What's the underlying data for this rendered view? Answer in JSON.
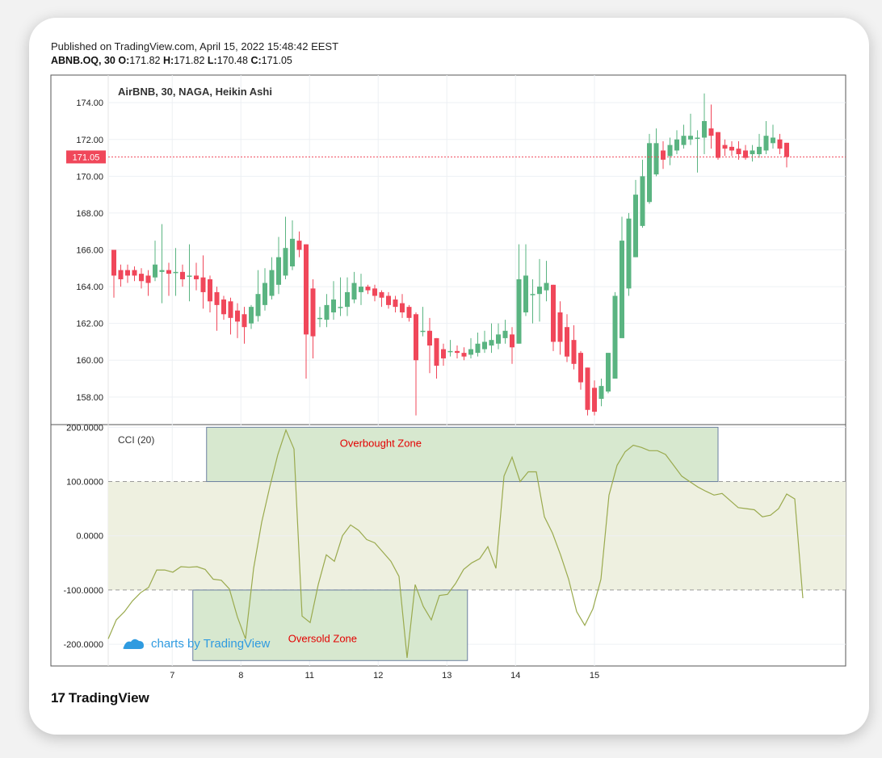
{
  "header": {
    "published": "Published on TradingView.com, April 15, 2022 15:48:42 EEST",
    "symbol": "ABNB.OQ, 30",
    "o_label": "O:",
    "o_value": "171.82",
    "h_label": "H:",
    "h_value": "171.82",
    "l_label": "L:",
    "l_value": "170.48",
    "c_label": "C:",
    "c_value": "171.05"
  },
  "footer": {
    "brand": "TradingView",
    "brand_mark": "17"
  },
  "colors": {
    "up": "#5ab481",
    "down": "#f0475a",
    "cci": "#9aaa4e",
    "band": "#eef0e0",
    "zone": "#d7e8cf",
    "zone_border": "#6b7fa0",
    "zone_text": "#e30000",
    "watermark": "#2f9be0",
    "price_tag": "#f0475a"
  },
  "chart_data": [
    {
      "type": "candlestick",
      "title": "AirBNB, 30, NAGA, Heikin Ashi",
      "ylim": [
        156.5,
        175.5
      ],
      "yticks": [
        "174.00",
        "172.00",
        "170.00",
        "168.00",
        "166.00",
        "164.00",
        "162.00",
        "160.00",
        "158.00"
      ],
      "ytick_values": [
        174,
        172,
        170,
        168,
        166,
        164,
        162,
        160,
        158
      ],
      "xticks": [
        "7",
        "8",
        "11",
        "12",
        "13",
        "14",
        "15"
      ],
      "x_label_slots": [
        8.5,
        18.5,
        28.5,
        38.5,
        48.5,
        58.5,
        70.0
      ],
      "last_price": 171.05,
      "last_price_label": "171.05",
      "candles": [
        {
          "o": 166.0,
          "c": 164.6,
          "h": 166.0,
          "l": 163.4
        },
        {
          "o": 164.9,
          "c": 164.4,
          "h": 165.2,
          "l": 164.0
        },
        {
          "o": 164.9,
          "c": 164.6,
          "h": 165.2,
          "l": 164.2
        },
        {
          "o": 164.9,
          "c": 164.6,
          "h": 165.1,
          "l": 164.3
        },
        {
          "o": 164.7,
          "c": 164.3,
          "h": 165.0,
          "l": 163.9
        },
        {
          "o": 164.6,
          "c": 164.2,
          "h": 164.9,
          "l": 163.5
        },
        {
          "o": 164.5,
          "c": 165.2,
          "h": 166.5,
          "l": 164.3
        },
        {
          "o": 164.8,
          "c": 164.9,
          "h": 167.4,
          "l": 163.1
        },
        {
          "o": 164.9,
          "c": 164.7,
          "h": 165.3,
          "l": 163.5
        },
        {
          "o": 164.8,
          "c": 164.8,
          "h": 166.1,
          "l": 163.5
        },
        {
          "o": 164.8,
          "c": 164.4,
          "h": 165.2,
          "l": 164.0
        },
        {
          "o": 164.6,
          "c": 164.6,
          "h": 166.3,
          "l": 163.2
        },
        {
          "o": 164.6,
          "c": 164.4,
          "h": 165.3,
          "l": 163.8
        },
        {
          "o": 164.5,
          "c": 163.7,
          "h": 165.7,
          "l": 162.8
        },
        {
          "o": 164.4,
          "c": 163.2,
          "h": 164.6,
          "l": 162.6
        },
        {
          "o": 163.7,
          "c": 163.0,
          "h": 164.0,
          "l": 161.6
        },
        {
          "o": 163.3,
          "c": 162.5,
          "h": 163.5,
          "l": 162.2
        },
        {
          "o": 163.2,
          "c": 162.3,
          "h": 163.4,
          "l": 161.4
        },
        {
          "o": 162.7,
          "c": 162.1,
          "h": 163.1,
          "l": 161.2
        },
        {
          "o": 162.5,
          "c": 161.8,
          "h": 162.9,
          "l": 160.9
        },
        {
          "o": 162.0,
          "c": 162.9,
          "h": 163.0,
          "l": 161.7
        },
        {
          "o": 162.4,
          "c": 163.6,
          "h": 164.9,
          "l": 162.1
        },
        {
          "o": 163.0,
          "c": 164.2,
          "h": 165.0,
          "l": 162.7
        },
        {
          "o": 163.5,
          "c": 164.9,
          "h": 165.6,
          "l": 163.3
        },
        {
          "o": 164.1,
          "c": 165.6,
          "h": 166.7,
          "l": 163.6
        },
        {
          "o": 164.6,
          "c": 166.1,
          "h": 167.8,
          "l": 164.4
        },
        {
          "o": 165.1,
          "c": 166.6,
          "h": 167.6,
          "l": 164.9
        },
        {
          "o": 166.5,
          "c": 166.0,
          "h": 167.0,
          "l": 165.6
        },
        {
          "o": 166.3,
          "c": 161.4,
          "h": 166.3,
          "l": 159.0
        },
        {
          "o": 163.9,
          "c": 161.3,
          "h": 164.4,
          "l": 160.1
        },
        {
          "o": 162.3,
          "c": 162.3,
          "h": 162.9,
          "l": 161.8
        },
        {
          "o": 162.2,
          "c": 163.0,
          "h": 163.6,
          "l": 161.8
        },
        {
          "o": 162.6,
          "c": 163.3,
          "h": 164.3,
          "l": 162.2
        },
        {
          "o": 162.9,
          "c": 162.9,
          "h": 164.5,
          "l": 162.4
        },
        {
          "o": 162.9,
          "c": 163.7,
          "h": 164.5,
          "l": 162.4
        },
        {
          "o": 163.3,
          "c": 164.2,
          "h": 164.8,
          "l": 163.1
        },
        {
          "o": 163.7,
          "c": 164.0,
          "h": 164.7,
          "l": 163.0
        },
        {
          "o": 164.0,
          "c": 163.8,
          "h": 164.1,
          "l": 163.6
        },
        {
          "o": 163.9,
          "c": 163.5,
          "h": 164.1,
          "l": 163.2
        },
        {
          "o": 163.7,
          "c": 163.4,
          "h": 163.8,
          "l": 162.9
        },
        {
          "o": 163.5,
          "c": 163.0,
          "h": 163.7,
          "l": 162.8
        },
        {
          "o": 163.3,
          "c": 162.9,
          "h": 163.5,
          "l": 162.6
        },
        {
          "o": 163.1,
          "c": 162.6,
          "h": 163.6,
          "l": 162.3
        },
        {
          "o": 162.9,
          "c": 162.3,
          "h": 163.0,
          "l": 162.1
        },
        {
          "o": 162.5,
          "c": 160.0,
          "h": 162.6,
          "l": 157.0
        },
        {
          "o": 161.6,
          "c": 161.6,
          "h": 162.9,
          "l": 161.3
        },
        {
          "o": 161.6,
          "c": 160.8,
          "h": 162.3,
          "l": 159.3
        },
        {
          "o": 161.2,
          "c": 159.7,
          "h": 161.2,
          "l": 159.0
        },
        {
          "o": 160.6,
          "c": 160.1,
          "h": 160.9,
          "l": 159.7
        },
        {
          "o": 160.5,
          "c": 160.5,
          "h": 161.1,
          "l": 160.2
        },
        {
          "o": 160.5,
          "c": 160.4,
          "h": 160.8,
          "l": 160.1
        },
        {
          "o": 160.4,
          "c": 160.2,
          "h": 160.7,
          "l": 160.0
        },
        {
          "o": 160.3,
          "c": 160.6,
          "h": 161.2,
          "l": 160.1
        },
        {
          "o": 160.4,
          "c": 160.9,
          "h": 161.5,
          "l": 160.2
        },
        {
          "o": 160.6,
          "c": 161.0,
          "h": 161.6,
          "l": 160.4
        },
        {
          "o": 160.8,
          "c": 161.1,
          "h": 162.0,
          "l": 160.4
        },
        {
          "o": 160.9,
          "c": 161.4,
          "h": 162.0,
          "l": 160.6
        },
        {
          "o": 161.2,
          "c": 161.6,
          "h": 162.2,
          "l": 160.9
        },
        {
          "o": 161.4,
          "c": 160.7,
          "h": 161.8,
          "l": 159.8
        },
        {
          "o": 160.9,
          "c": 164.4,
          "h": 166.3,
          "l": 160.9
        },
        {
          "o": 162.6,
          "c": 164.6,
          "h": 166.3,
          "l": 162.4
        },
        {
          "o": 163.6,
          "c": 163.6,
          "h": 164.4,
          "l": 162.0
        },
        {
          "o": 163.6,
          "c": 164.0,
          "h": 165.5,
          "l": 162.1
        },
        {
          "o": 163.8,
          "c": 164.2,
          "h": 165.4,
          "l": 163.2
        },
        {
          "o": 164.1,
          "c": 161.0,
          "h": 164.1,
          "l": 160.5
        },
        {
          "o": 162.6,
          "c": 161.0,
          "h": 163.2,
          "l": 160.3
        },
        {
          "o": 161.8,
          "c": 160.2,
          "h": 162.5,
          "l": 159.9
        },
        {
          "o": 161.1,
          "c": 159.8,
          "h": 161.9,
          "l": 159.5
        },
        {
          "o": 160.4,
          "c": 158.8,
          "h": 160.5,
          "l": 158.4
        },
        {
          "o": 159.6,
          "c": 157.3,
          "h": 159.6,
          "l": 157.0
        },
        {
          "o": 158.5,
          "c": 157.2,
          "h": 158.9,
          "l": 157.0
        },
        {
          "o": 157.9,
          "c": 158.6,
          "h": 159.0,
          "l": 157.5
        },
        {
          "o": 158.3,
          "c": 160.4,
          "h": 160.4,
          "l": 158.2
        },
        {
          "o": 159.0,
          "c": 163.5,
          "h": 163.7,
          "l": 159.0
        },
        {
          "o": 161.2,
          "c": 166.5,
          "h": 167.8,
          "l": 161.2
        },
        {
          "o": 163.9,
          "c": 167.7,
          "h": 168.0,
          "l": 163.5
        },
        {
          "o": 165.6,
          "c": 169.0,
          "h": 169.8,
          "l": 165.6
        },
        {
          "o": 167.3,
          "c": 170.0,
          "h": 170.9,
          "l": 167.2
        },
        {
          "o": 168.6,
          "c": 171.8,
          "h": 172.3,
          "l": 168.5
        },
        {
          "o": 170.1,
          "c": 171.8,
          "h": 172.6,
          "l": 170.0
        },
        {
          "o": 171.4,
          "c": 170.9,
          "h": 171.9,
          "l": 170.4
        },
        {
          "o": 171.1,
          "c": 171.7,
          "h": 172.1,
          "l": 170.6
        },
        {
          "o": 171.4,
          "c": 172.0,
          "h": 172.5,
          "l": 171.2
        },
        {
          "o": 171.7,
          "c": 172.2,
          "h": 172.8,
          "l": 171.5
        },
        {
          "o": 172.0,
          "c": 172.2,
          "h": 173.4,
          "l": 171.7
        },
        {
          "o": 172.1,
          "c": 172.1,
          "h": 172.5,
          "l": 170.2
        },
        {
          "o": 172.1,
          "c": 173.0,
          "h": 174.5,
          "l": 171.2
        },
        {
          "o": 172.6,
          "c": 172.2,
          "h": 173.9,
          "l": 171.5
        },
        {
          "o": 172.4,
          "c": 171.0,
          "h": 172.4,
          "l": 170.9
        },
        {
          "o": 171.7,
          "c": 171.5,
          "h": 172.0,
          "l": 171.1
        },
        {
          "o": 171.6,
          "c": 171.4,
          "h": 171.9,
          "l": 171.1
        },
        {
          "o": 171.5,
          "c": 171.2,
          "h": 171.9,
          "l": 170.9
        },
        {
          "o": 171.4,
          "c": 171.0,
          "h": 171.7,
          "l": 170.9
        },
        {
          "o": 171.2,
          "c": 171.4,
          "h": 171.7,
          "l": 170.8
        },
        {
          "o": 171.2,
          "c": 171.6,
          "h": 172.3,
          "l": 171.0
        },
        {
          "o": 171.4,
          "c": 172.2,
          "h": 173.0,
          "l": 171.2
        },
        {
          "o": 171.8,
          "c": 172.1,
          "h": 172.8,
          "l": 171.5
        },
        {
          "o": 172.0,
          "c": 171.5,
          "h": 172.3,
          "l": 171.2
        },
        {
          "o": 171.82,
          "c": 171.05,
          "h": 171.82,
          "l": 170.48
        }
      ]
    },
    {
      "type": "line",
      "title": "CCI (20)",
      "ylim": [
        -240,
        205
      ],
      "yticks": [
        "200.0000",
        "100.0000",
        "0.0000",
        "-100.0000",
        "-200.0000"
      ],
      "ytick_values": [
        200,
        100,
        0,
        -100,
        -200
      ],
      "band": [
        -100,
        100
      ],
      "zones": [
        {
          "name": "Overbought Zone",
          "x0": 13.5,
          "x1": 88.0,
          "y0": 100,
          "y1": 200
        },
        {
          "name": "Oversold Zone",
          "x0": 11.5,
          "x1": 51.5,
          "y0": -230,
          "y1": -100
        }
      ],
      "watermark": "charts by TradingView",
      "series": [
        {
          "values": [
            -190,
            -155,
            -140,
            -120,
            -105,
            -95,
            -63,
            -63,
            -67,
            -57,
            -58,
            -57,
            -62,
            -80,
            -82,
            -98,
            -150,
            -190,
            -60,
            25,
            90,
            150,
            195,
            160,
            -148,
            -160,
            -90,
            -35,
            -47,
            0,
            20,
            10,
            -7,
            -13,
            -30,
            -47,
            -75,
            -225,
            -90,
            -130,
            -155,
            -110,
            -108,
            -88,
            -62,
            -50,
            -42,
            -20,
            -60,
            110,
            145,
            100,
            118,
            118,
            35,
            5,
            -35,
            -80,
            -140,
            -165,
            -135,
            -80,
            75,
            130,
            155,
            167,
            163,
            157,
            157,
            150,
            130,
            110,
            100,
            90,
            82,
            75,
            78,
            65,
            52,
            50,
            48,
            35,
            38,
            50,
            77,
            68,
            -115
          ]
        }
      ]
    }
  ]
}
